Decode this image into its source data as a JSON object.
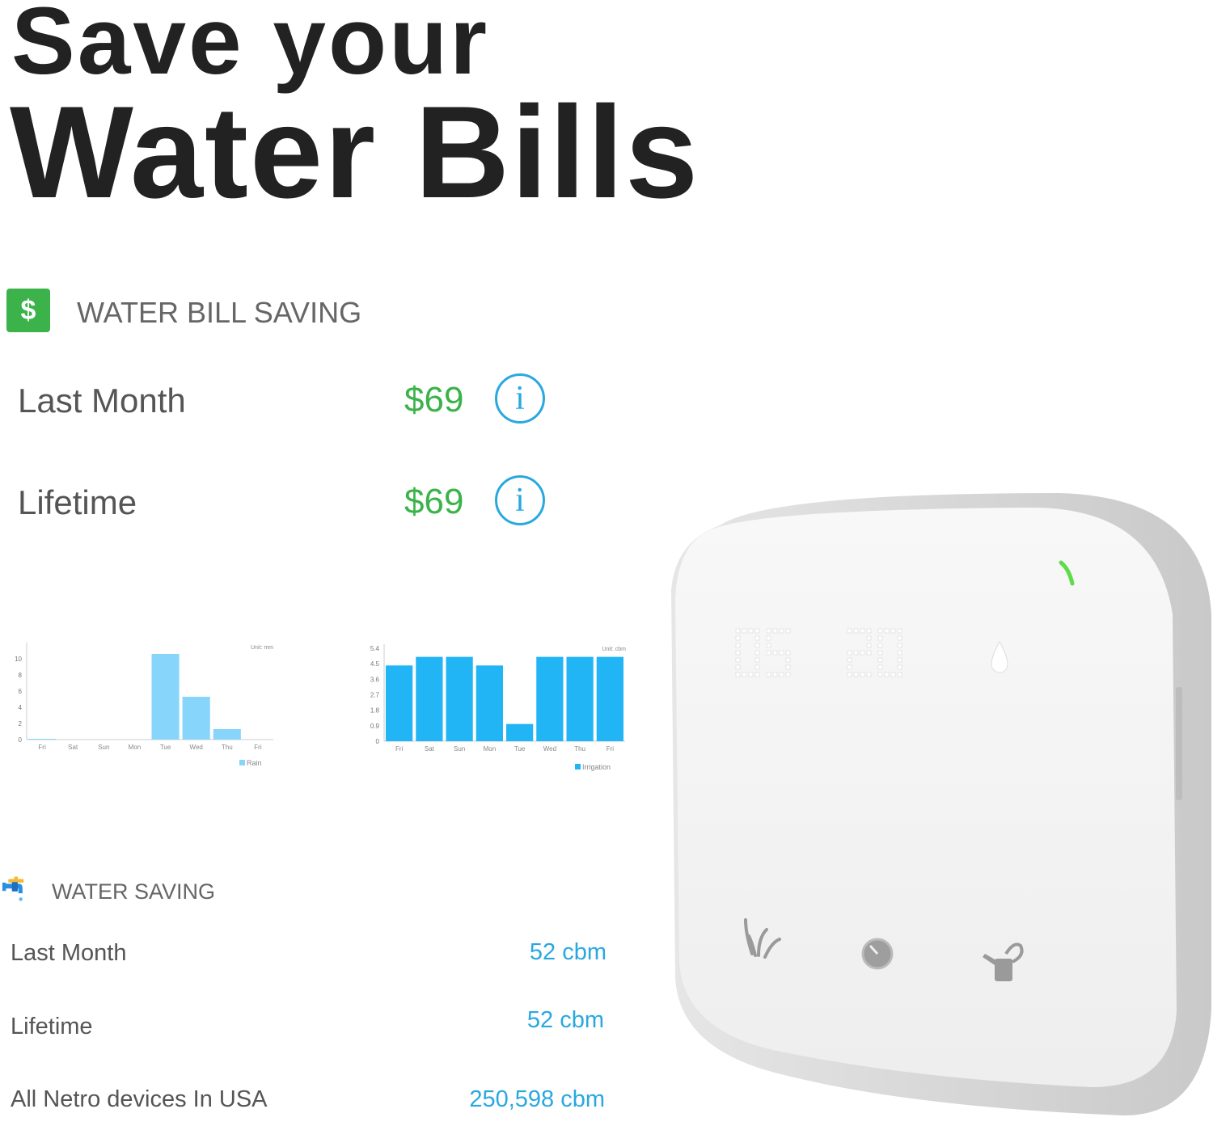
{
  "headline": {
    "line1": "Save your",
    "line2": "Water Bills"
  },
  "water_bill_saving": {
    "icon": "dollar-icon",
    "title": "WATER BILL SAVING",
    "rows": [
      {
        "label": "Last Month",
        "value": "$69",
        "info_icon": "info-icon"
      },
      {
        "label": "Lifetime",
        "value": "$69",
        "info_icon": "info-icon"
      }
    ],
    "accent": "#3bb34a"
  },
  "chart_data": [
    {
      "type": "bar",
      "unit_label": "Unit: mm",
      "categories": [
        "Fri",
        "Sat",
        "Sun",
        "Mon",
        "Tue",
        "Wed",
        "Thu",
        "Fri"
      ],
      "series": [
        {
          "name": "Rain",
          "values": [
            0.1,
            0,
            0,
            0,
            10.6,
            5.3,
            1.3,
            0
          ],
          "color": "#87d5fb"
        }
      ],
      "yticks": [
        0,
        2,
        4,
        6,
        8,
        10
      ],
      "ylim": [
        0,
        11.5
      ],
      "legend": "bottom-right"
    },
    {
      "type": "bar",
      "unit_label": "Unit: cbm",
      "categories": [
        "Fri",
        "Sat",
        "Sun",
        "Mon",
        "Tue",
        "Wed",
        "Thu",
        "Fri"
      ],
      "series": [
        {
          "name": "Irrigation",
          "values": [
            4.4,
            4.9,
            4.9,
            4.4,
            1.0,
            4.9,
            4.9,
            4.9
          ],
          "color": "#22b5f5"
        }
      ],
      "yticks": [
        "0",
        "0.9",
        "1.8",
        "2.7",
        "3.6",
        "4.5",
        "5.4"
      ],
      "ylim": [
        0,
        5.4
      ],
      "legend": "bottom-right"
    }
  ],
  "water_saving": {
    "icon": "faucet-icon",
    "title": "WATER SAVING",
    "rows": [
      {
        "label": "Last Month",
        "value": "52 cbm"
      },
      {
        "label": "Lifetime",
        "value": "52 cbm"
      },
      {
        "label": "All Netro devices In USA",
        "value": "250,598 cbm"
      }
    ],
    "accent": "#29a8e0"
  },
  "device": {
    "display": [
      "05",
      "20"
    ],
    "icons": [
      "droplet-icon",
      "grass-icon",
      "timer-icon",
      "watering-can-icon"
    ],
    "status_led_color": "#5fdc4a"
  }
}
